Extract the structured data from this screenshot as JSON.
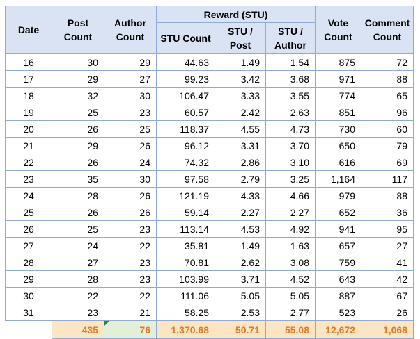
{
  "headers": {
    "date": "Date",
    "post_count": [
      "Post",
      "Count"
    ],
    "author_count": [
      "Author",
      "Count"
    ],
    "reward_group": "Reward (STU)",
    "stu_count": "STU Count",
    "stu_per_post": [
      "STU /",
      "Post"
    ],
    "stu_per_author": [
      "STU /",
      "Author"
    ],
    "vote_count": [
      "Vote",
      "Count"
    ],
    "comment_count": [
      "Comment",
      "Count"
    ]
  },
  "rows": [
    {
      "date": "16",
      "post": "30",
      "author": "29",
      "stu": "44.63",
      "per_post": "1.49",
      "per_author": "1.54",
      "vote": "875",
      "comment": "72"
    },
    {
      "date": "17",
      "post": "29",
      "author": "27",
      "stu": "99.23",
      "per_post": "3.42",
      "per_author": "3.68",
      "vote": "971",
      "comment": "88"
    },
    {
      "date": "18",
      "post": "32",
      "author": "30",
      "stu": "106.47",
      "per_post": "3.33",
      "per_author": "3.55",
      "vote": "774",
      "comment": "65"
    },
    {
      "date": "19",
      "post": "25",
      "author": "23",
      "stu": "60.57",
      "per_post": "2.42",
      "per_author": "2.63",
      "vote": "851",
      "comment": "96"
    },
    {
      "date": "20",
      "post": "26",
      "author": "25",
      "stu": "118.37",
      "per_post": "4.55",
      "per_author": "4.73",
      "vote": "730",
      "comment": "60"
    },
    {
      "date": "21",
      "post": "29",
      "author": "26",
      "stu": "96.12",
      "per_post": "3.31",
      "per_author": "3.70",
      "vote": "650",
      "comment": "79"
    },
    {
      "date": "22",
      "post": "26",
      "author": "24",
      "stu": "74.32",
      "per_post": "2.86",
      "per_author": "3.10",
      "vote": "616",
      "comment": "69"
    },
    {
      "date": "23",
      "post": "35",
      "author": "30",
      "stu": "97.58",
      "per_post": "2.79",
      "per_author": "3.25",
      "vote": "1,164",
      "comment": "117"
    },
    {
      "date": "24",
      "post": "28",
      "author": "26",
      "stu": "121.19",
      "per_post": "4.33",
      "per_author": "4.66",
      "vote": "979",
      "comment": "88"
    },
    {
      "date": "25",
      "post": "26",
      "author": "26",
      "stu": "59.14",
      "per_post": "2.27",
      "per_author": "2.27",
      "vote": "652",
      "comment": "36"
    },
    {
      "date": "26",
      "post": "25",
      "author": "23",
      "stu": "113.14",
      "per_post": "4.53",
      "per_author": "4.92",
      "vote": "941",
      "comment": "95"
    },
    {
      "date": "27",
      "post": "24",
      "author": "22",
      "stu": "35.81",
      "per_post": "1.49",
      "per_author": "1.63",
      "vote": "657",
      "comment": "27"
    },
    {
      "date": "28",
      "post": "27",
      "author": "23",
      "stu": "70.81",
      "per_post": "2.62",
      "per_author": "3.08",
      "vote": "759",
      "comment": "41"
    },
    {
      "date": "29",
      "post": "28",
      "author": "23",
      "stu": "103.99",
      "per_post": "3.71",
      "per_author": "4.52",
      "vote": "643",
      "comment": "42"
    },
    {
      "date": "30",
      "post": "22",
      "author": "22",
      "stu": "111.06",
      "per_post": "5.05",
      "per_author": "5.05",
      "vote": "887",
      "comment": "67"
    },
    {
      "date": "31",
      "post": "23",
      "author": "21",
      "stu": "58.25",
      "per_post": "2.53",
      "per_author": "2.77",
      "vote": "523",
      "comment": "26"
    }
  ],
  "totals": {
    "post": "435",
    "author": "76",
    "stu": "1,370.68",
    "per_post": "50.71",
    "per_author": "55.08",
    "vote": "12,672",
    "comment": "1,068"
  },
  "colors": {
    "header_bg": "#dae3f3",
    "border": "#8eaadb",
    "total_bg": "#fbe5c4",
    "total_text": "#e07b20",
    "author_total_bg": "#e2efd9",
    "flag": "#1f8a3c"
  }
}
